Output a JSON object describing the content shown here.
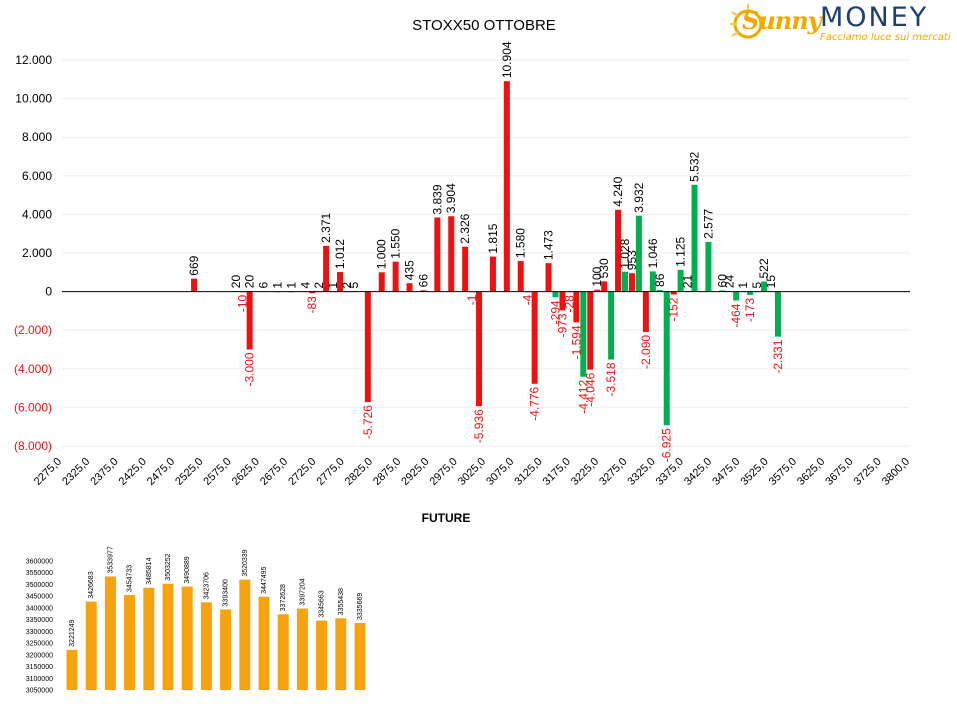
{
  "logo": {
    "word1": "Sunny",
    "word2": "MONEY",
    "tagline": "Facciamo luce sui mercati"
  },
  "future_title": "FUTURE",
  "chart_data": [
    {
      "type": "bar",
      "title": "STOXX50 OTTOBRE",
      "xlabel": "",
      "ylabel": "",
      "ylim": [
        -8000,
        12000
      ],
      "yticks": [
        12000,
        10000,
        8000,
        6000,
        4000,
        2000,
        0,
        -2000,
        -4000,
        -6000,
        -8000
      ],
      "ytick_labels": [
        "12.000",
        "10.000",
        "8.000",
        "6.000",
        "4.000",
        "2.000",
        "0",
        "(2.000)",
        "(4.000)",
        "(6.000)",
        "(8.000)"
      ],
      "categories": [
        "2275,0",
        "2325,0",
        "2375,0",
        "2425,0",
        "2475,0",
        "2525,0",
        "2575,0",
        "2625,0",
        "2675,0",
        "2725,0",
        "2775,0",
        "2825,0",
        "2875,0",
        "2925,0",
        "2975,0",
        "3025,0",
        "3075,0",
        "3125,0",
        "3175,0",
        "3225,0",
        "3275,0",
        "3325,0",
        "3375,0",
        "3425,0",
        "3475,0",
        "3525,0",
        "3575,0",
        "3625,0",
        "3675,0",
        "3725,0",
        "3800,0"
      ],
      "x_range": [
        2275,
        3800
      ],
      "colors": {
        "red": "#ee1111",
        "green": "#00b050",
        "negative_label": "#ee1111",
        "positive_label": "#000000"
      },
      "series": [
        {
          "color": "#ee1111",
          "points": [
            {
              "x": 2512.5,
              "value": 669,
              "label": "669"
            },
            {
              "x": 2587.5,
              "value": 20,
              "label": "20"
            },
            {
              "x": 2600,
              "value": -10,
              "label": "-10"
            },
            {
              "x": 2612.5,
              "value": -3000,
              "label": "-3.000"
            },
            {
              "x": 2612.5,
              "value": 20,
              "label": "20"
            },
            {
              "x": 2637.5,
              "value": 6,
              "label": "6"
            },
            {
              "x": 2662.5,
              "value": 1,
              "label": "1"
            },
            {
              "x": 2687.5,
              "value": 1,
              "label": "1"
            },
            {
              "x": 2712.5,
              "value": 4,
              "label": "4"
            },
            {
              "x": 2725,
              "value": -83,
              "label": "-83"
            },
            {
              "x": 2737.5,
              "value": 2,
              "label": "2"
            },
            {
              "x": 2750,
              "value": 2371,
              "label": "2.371"
            },
            {
              "x": 2762.5,
              "value": 1,
              "label": "1"
            },
            {
              "x": 2775,
              "value": 1012,
              "label": "1.012"
            },
            {
              "x": 2787.5,
              "value": 2,
              "label": "2"
            },
            {
              "x": 2800,
              "value": 5,
              "label": "5"
            },
            {
              "x": 2825,
              "value": -5726,
              "label": "-5.726"
            },
            {
              "x": 2850,
              "value": 1000,
              "label": "1.000"
            },
            {
              "x": 2875,
              "value": 1550,
              "label": "1.550"
            },
            {
              "x": 2900,
              "value": 435,
              "label": "435"
            },
            {
              "x": 2925,
              "value": 66,
              "label": "66"
            },
            {
              "x": 2950,
              "value": 3839,
              "label": "3.839"
            },
            {
              "x": 2975,
              "value": 3904,
              "label": "3.904"
            },
            {
              "x": 3000,
              "value": 2326,
              "label": "2.326"
            },
            {
              "x": 3012.5,
              "value": -1,
              "label": "-1"
            },
            {
              "x": 3025,
              "value": -5936,
              "label": "-5.936"
            },
            {
              "x": 3050,
              "value": 1815,
              "label": "1.815"
            },
            {
              "x": 3075,
              "value": 10904,
              "label": "10.904"
            },
            {
              "x": 3100,
              "value": 1580,
              "label": "1.580"
            },
            {
              "x": 3112.5,
              "value": -4,
              "label": "-4"
            },
            {
              "x": 3125,
              "value": -4776,
              "label": "-4.776"
            },
            {
              "x": 3150,
              "value": 1473,
              "label": "1.473"
            },
            {
              "x": 3175,
              "value": -973,
              "label": "-973"
            },
            {
              "x": 3187.5,
              "value": -28,
              "label": "-28"
            },
            {
              "x": 3200,
              "value": -1594,
              "label": "-1.594"
            },
            {
              "x": 3225,
              "value": -4046,
              "label": "-4.046"
            },
            {
              "x": 3237.5,
              "value": 100,
              "label": "100"
            },
            {
              "x": 3250,
              "value": 530,
              "label": "530"
            },
            {
              "x": 3275,
              "value": 4240,
              "label": "4.240"
            },
            {
              "x": 3300,
              "value": 953,
              "label": "953"
            },
            {
              "x": 3325,
              "value": -2090,
              "label": "-2.090"
            },
            {
              "x": 3375,
              "value": -152,
              "label": "-152"
            }
          ]
        },
        {
          "color": "#00b050",
          "points": [
            {
              "x": 3162.5,
              "value": -294,
              "label": "-294"
            },
            {
              "x": 3212.5,
              "value": -4412,
              "label": "-4.412"
            },
            {
              "x": 3262.5,
              "value": -3518,
              "label": "-3.518"
            },
            {
              "x": 3287.5,
              "value": 1028,
              "label": "1.028"
            },
            {
              "x": 3312.5,
              "value": 3932,
              "label": "3.932"
            },
            {
              "x": 3337.5,
              "value": 1046,
              "label": "1.046"
            },
            {
              "x": 3350,
              "value": 86,
              "label": "86"
            },
            {
              "x": 3362.5,
              "value": -6925,
              "label": "-6.925"
            },
            {
              "x": 3387.5,
              "value": 1125,
              "label": "1.125"
            },
            {
              "x": 3400,
              "value": 21,
              "label": "21"
            },
            {
              "x": 3412.5,
              "value": 5532,
              "label": "5.532"
            },
            {
              "x": 3437.5,
              "value": 2577,
              "label": "2.577"
            },
            {
              "x": 3462.5,
              "value": 60,
              "label": "60"
            },
            {
              "x": 3475,
              "value": 24,
              "label": "24"
            },
            {
              "x": 3487.5,
              "value": -464,
              "label": "-464"
            },
            {
              "x": 3500,
              "value": 1,
              "label": "1"
            },
            {
              "x": 3512.5,
              "value": -173,
              "label": "-173"
            },
            {
              "x": 3525,
              "value": 5,
              "label": "5"
            },
            {
              "x": 3537.5,
              "value": 522,
              "label": "522"
            },
            {
              "x": 3550,
              "value": 15,
              "label": "15"
            },
            {
              "x": 3562.5,
              "value": -2331,
              "label": "-2.331"
            }
          ]
        }
      ]
    },
    {
      "type": "bar",
      "title": "",
      "ylim": [
        3050000,
        3600000
      ],
      "yticks": [
        3600000,
        3550000,
        3500000,
        3450000,
        3400000,
        3350000,
        3300000,
        3250000,
        3200000,
        3150000,
        3100000,
        3050000
      ],
      "ytick_labels": [
        "3600000",
        "3550000",
        "3500000",
        "3450000",
        "3400000",
        "3350000",
        "3300000",
        "3250000",
        "3200000",
        "3150000",
        "3100000",
        "3050000"
      ],
      "color": "#f5a30f",
      "values": [
        3221249,
        3426683,
        3533977,
        3454733,
        3485814,
        3503252,
        3490889,
        3423706,
        3393400,
        3520339,
        3447495,
        3372628,
        3397204,
        3345663,
        3355438,
        3335669
      ]
    }
  ]
}
